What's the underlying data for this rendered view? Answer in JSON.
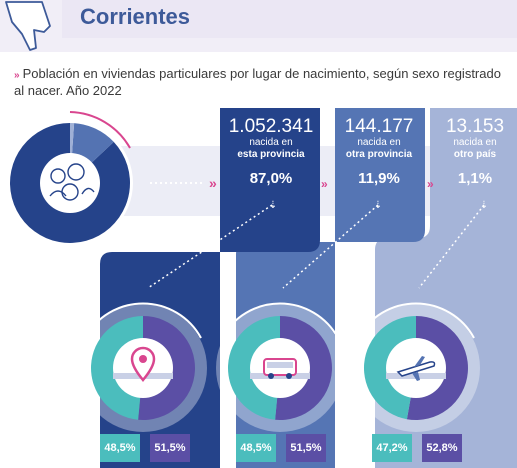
{
  "header": {
    "title": "Corrientes"
  },
  "subtitle": "Población en viviendas particulares por lugar de nacimiento, según sexo registrado al nacer. Año 2022",
  "colors": {
    "dark_blue": "#25438a",
    "mid_blue": "#5473b2",
    "light_blue": "#9fb0d6",
    "teal": "#4bbdbd",
    "purple": "#5b4fa5",
    "pink": "#d9468f"
  },
  "icons": [
    "map-outline-icon",
    "people-group-icon",
    "location-pin-icon",
    "bus-icon",
    "airplane-icon"
  ],
  "categories": [
    {
      "count": "1.052.341",
      "label_line1": "nacida en",
      "label_line2": "esta provincia",
      "percent": "87,0%",
      "icon": "location-pin-icon",
      "sex": {
        "left": "48,5%",
        "right": "51,5%"
      }
    },
    {
      "count": "144.177",
      "label_line1": "nacida en",
      "label_line2": "otra provincia",
      "percent": "11,9%",
      "icon": "bus-icon",
      "sex": {
        "left": "48,5%",
        "right": "51,5%"
      }
    },
    {
      "count": "13.153",
      "label_line1": "nacida en",
      "label_line2": "otro país",
      "percent": "1,1%",
      "icon": "airplane-icon",
      "sex": {
        "left": "47,2%",
        "right": "52,8%"
      }
    }
  ],
  "chart_data": {
    "type": "pie",
    "categories": [
      "nacida en esta provincia",
      "nacida en otra provincia",
      "nacida en otro país"
    ],
    "values": [
      87.0,
      11.9,
      1.1
    ],
    "counts": [
      1052341,
      144177,
      13153
    ],
    "sex_split": [
      {
        "category": "nacida en esta provincia",
        "values": [
          48.5,
          51.5
        ]
      },
      {
        "category": "nacida en otra provincia",
        "values": [
          48.5,
          51.5
        ]
      },
      {
        "category": "nacida en otro país",
        "values": [
          47.2,
          52.8
        ]
      }
    ]
  }
}
